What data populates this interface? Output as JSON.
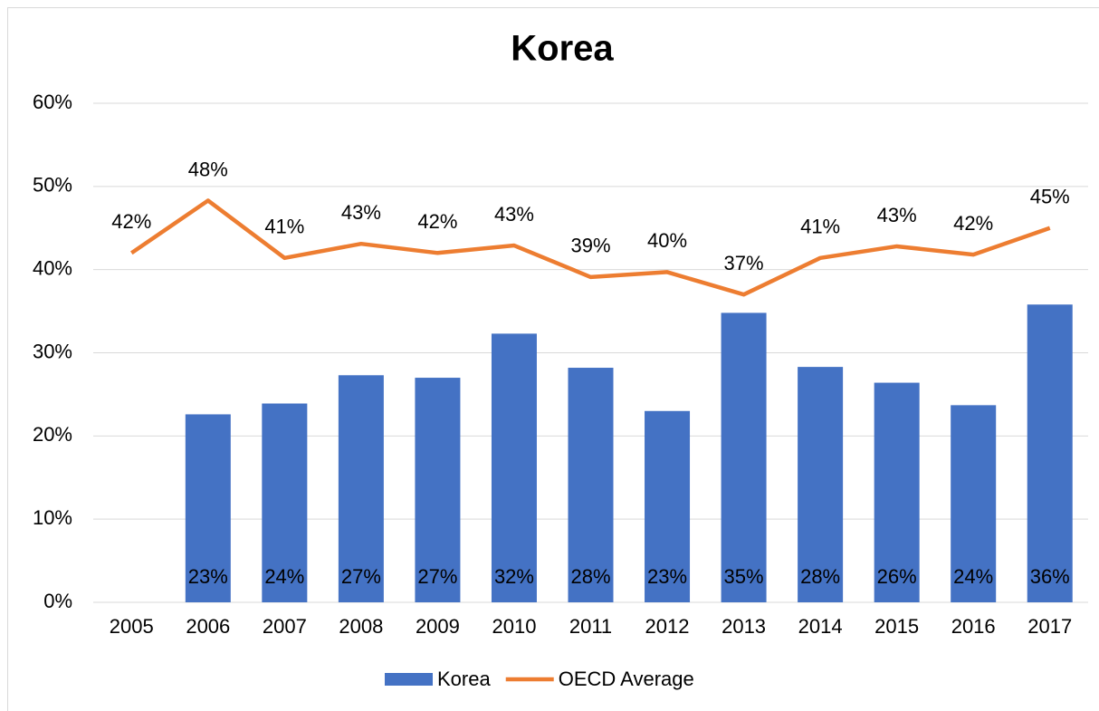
{
  "chart_data": {
    "type": "bar",
    "title": "Korea",
    "categories": [
      "2005",
      "2006",
      "2007",
      "2008",
      "2009",
      "2010",
      "2011",
      "2012",
      "2013",
      "2014",
      "2015",
      "2016",
      "2017"
    ],
    "series": [
      {
        "name": "Korea",
        "type": "bar",
        "color": "#4472c4",
        "values": [
          null,
          22.6,
          23.9,
          27.3,
          27.0,
          32.3,
          28.2,
          23.0,
          34.8,
          28.3,
          26.4,
          23.7,
          35.8
        ],
        "value_labels": [
          null,
          "23%",
          "24%",
          "27%",
          "27%",
          "32%",
          "28%",
          "23%",
          "35%",
          "28%",
          "26%",
          "24%",
          "36%"
        ]
      },
      {
        "name": "OECD Average",
        "type": "line",
        "color": "#ed7d31",
        "values": [
          42,
          48.3,
          41.4,
          43.1,
          42,
          42.9,
          39.1,
          39.7,
          37,
          41.4,
          42.8,
          41.8,
          45
        ],
        "value_labels": [
          "42%",
          "48%",
          "41%",
          "43%",
          "42%",
          "43%",
          "39%",
          "40%",
          "37%",
          "41%",
          "43%",
          "42%",
          "45%"
        ]
      }
    ],
    "ylim": [
      0,
      60
    ],
    "yticks": [
      {
        "value": 0,
        "label": "0%"
      },
      {
        "value": 10,
        "label": "10%"
      },
      {
        "value": 20,
        "label": "20%"
      },
      {
        "value": 30,
        "label": "30%"
      },
      {
        "value": 40,
        "label": "40%"
      },
      {
        "value": 50,
        "label": "50%"
      },
      {
        "value": 60,
        "label": "60%"
      }
    ],
    "grid": true,
    "legend": "bottom"
  }
}
